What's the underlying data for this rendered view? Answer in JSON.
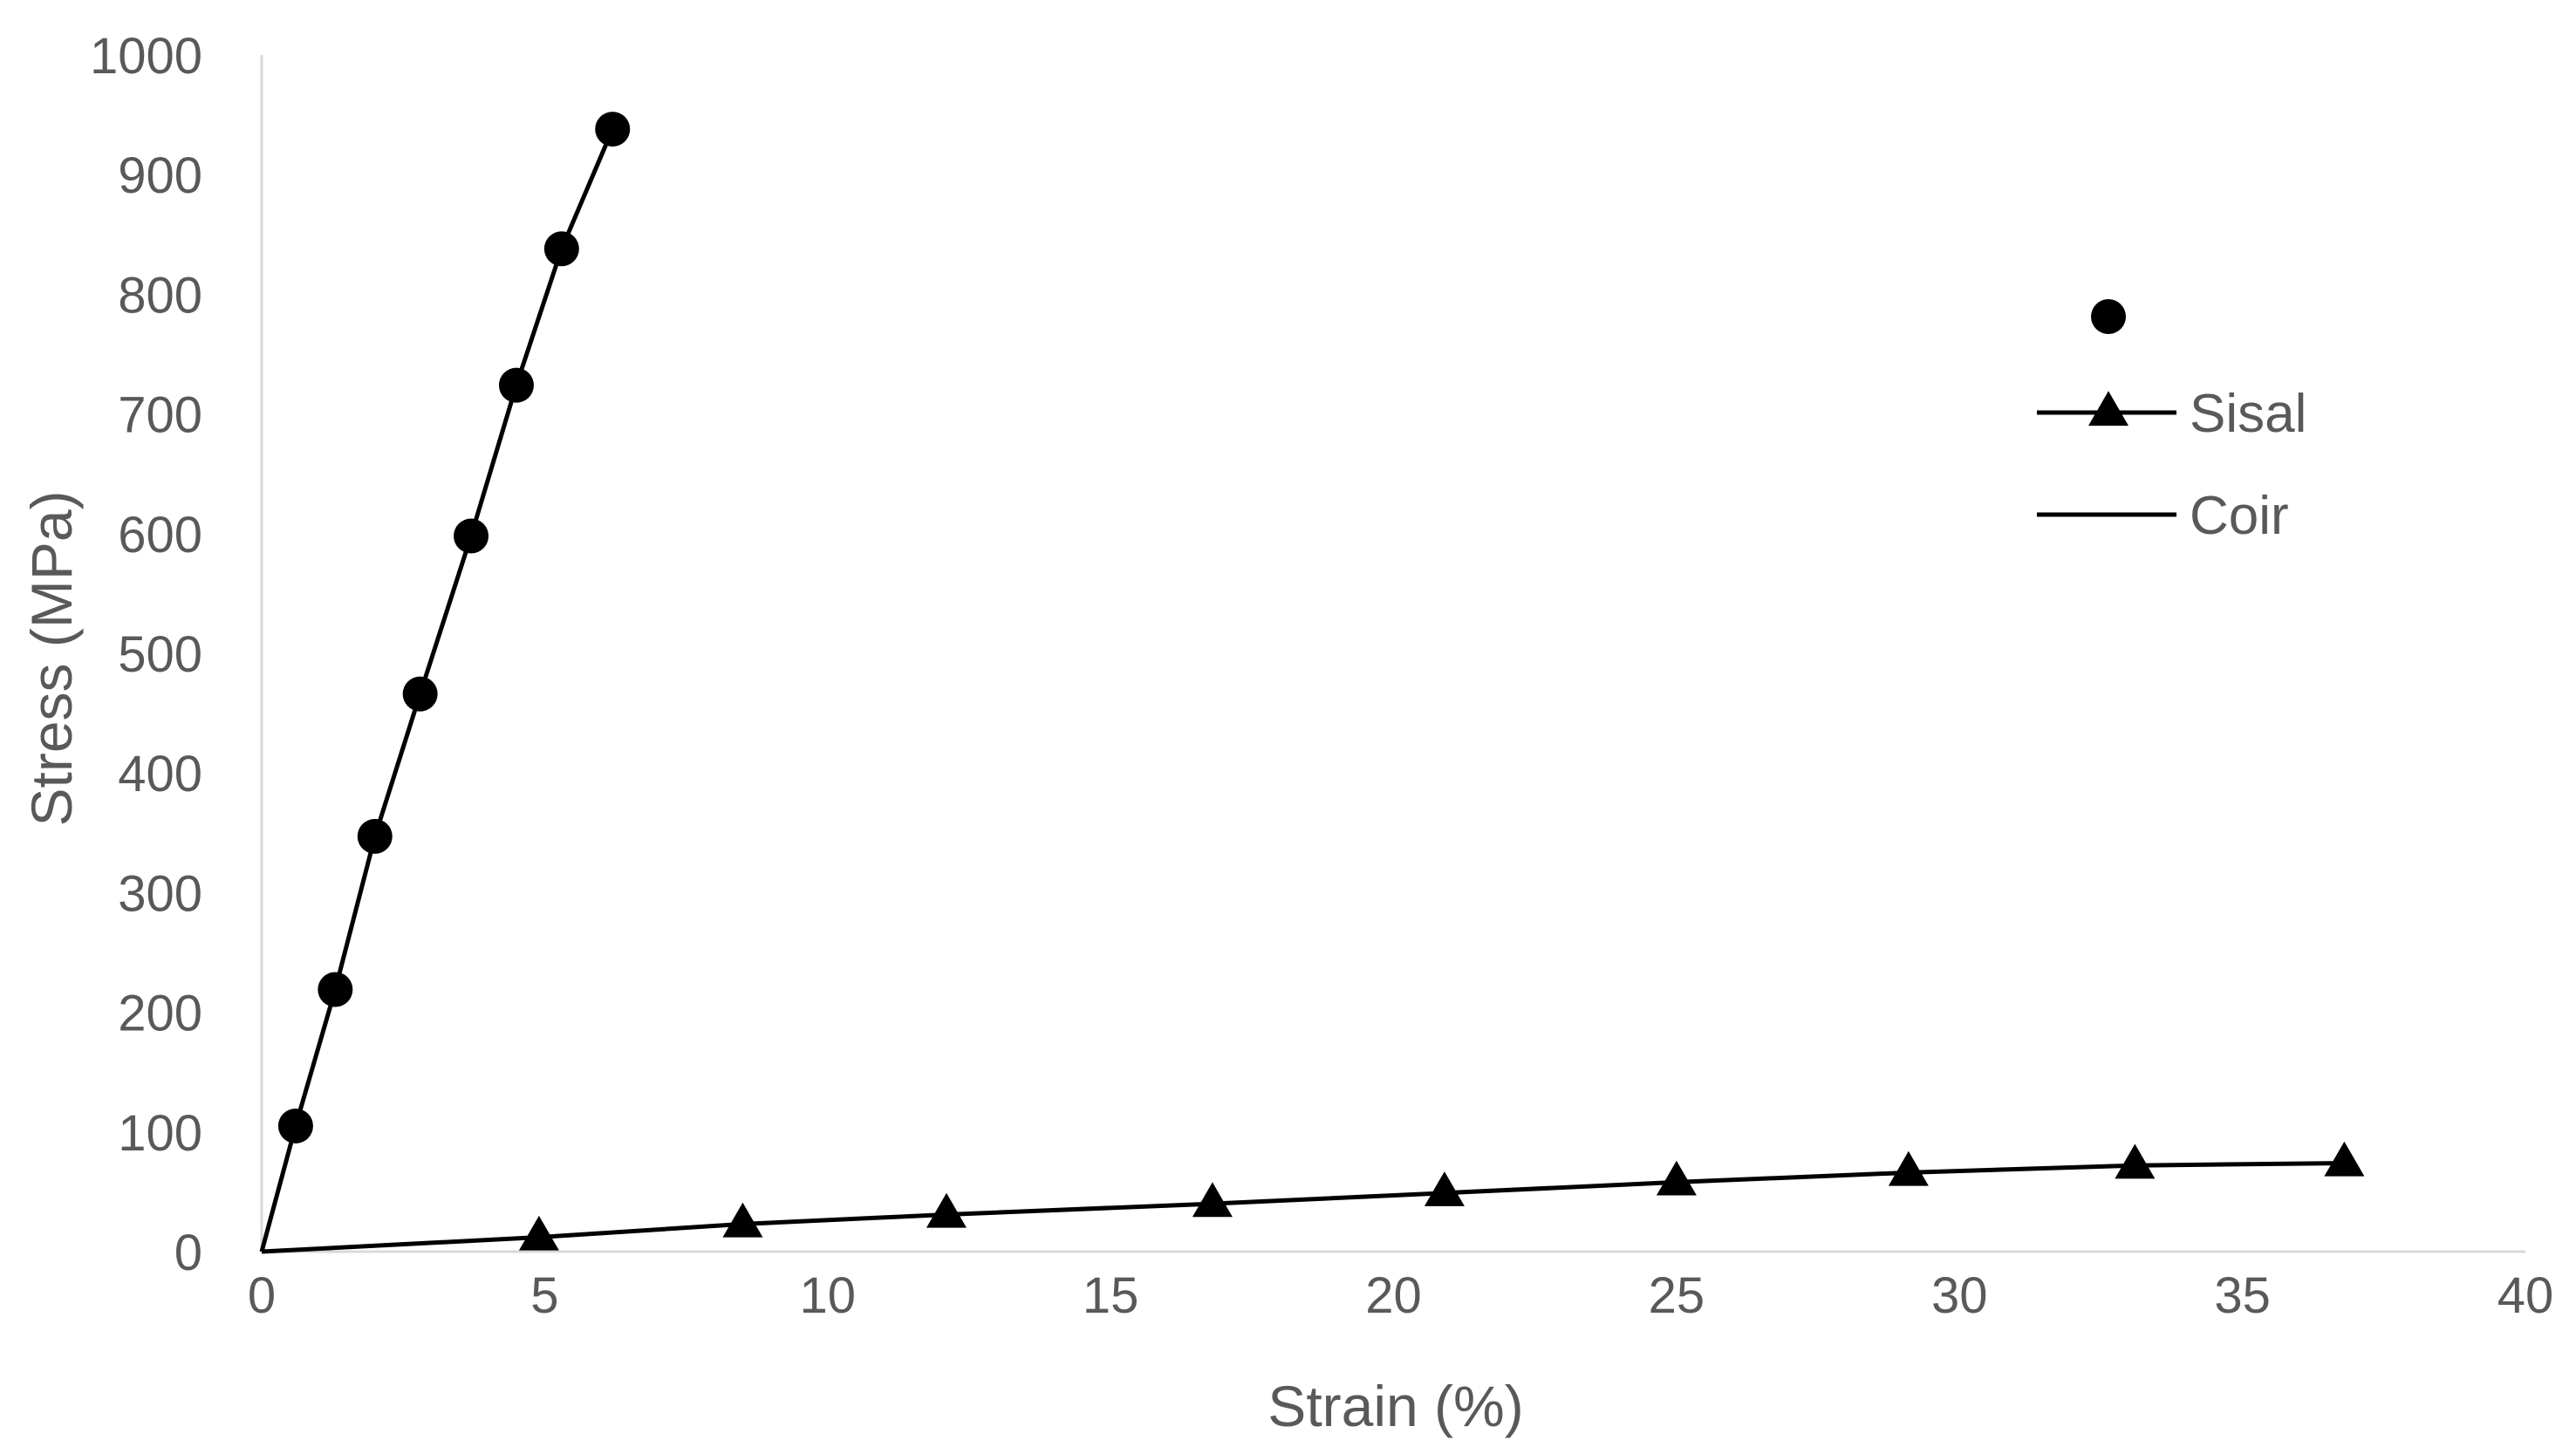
{
  "chart_data": {
    "type": "scatter",
    "title": "",
    "xlabel": "Strain (%)",
    "ylabel": "Stress (MPa)",
    "xlim": [
      0,
      40
    ],
    "ylim": [
      0,
      1000
    ],
    "x_ticks": [
      0,
      5,
      10,
      15,
      20,
      25,
      30,
      35,
      40
    ],
    "y_ticks": [
      0,
      100,
      200,
      300,
      400,
      500,
      600,
      700,
      800,
      900,
      1000
    ],
    "grid": false,
    "legend": {
      "position": "right"
    },
    "series": [
      {
        "name": "",
        "marker": "circle",
        "points": [
          [
            0.6,
            105
          ],
          [
            1.3,
            219
          ],
          [
            2.0,
            347
          ],
          [
            2.8,
            466
          ],
          [
            3.7,
            598
          ],
          [
            4.5,
            724
          ],
          [
            5.3,
            838
          ],
          [
            6.2,
            938
          ]
        ]
      },
      {
        "name": "Sisal",
        "marker": "triangle",
        "points": [
          [
            4.9,
            12
          ],
          [
            8.5,
            23
          ],
          [
            12.1,
            31
          ],
          [
            16.8,
            40
          ],
          [
            20.9,
            49
          ],
          [
            25.0,
            58
          ],
          [
            29.1,
            66
          ],
          [
            33.1,
            72
          ],
          [
            36.8,
            74
          ]
        ]
      },
      {
        "name": "Coir",
        "marker": "none",
        "points": []
      }
    ],
    "curves": [
      {
        "marker": "circle",
        "points": [
          [
            0,
            0
          ],
          [
            0.6,
            105
          ],
          [
            1.3,
            219
          ],
          [
            2.0,
            347
          ],
          [
            2.8,
            466
          ],
          [
            3.7,
            598
          ],
          [
            4.5,
            724
          ],
          [
            5.3,
            838
          ],
          [
            6.2,
            938
          ]
        ]
      },
      {
        "marker": "triangle",
        "points": [
          [
            0,
            0
          ],
          [
            4.9,
            12
          ],
          [
            8.5,
            23
          ],
          [
            12.1,
            31
          ],
          [
            16.8,
            40
          ],
          [
            20.9,
            49
          ],
          [
            25.0,
            58
          ],
          [
            29.1,
            66
          ],
          [
            33.1,
            72
          ],
          [
            36.8,
            74
          ]
        ]
      }
    ]
  }
}
